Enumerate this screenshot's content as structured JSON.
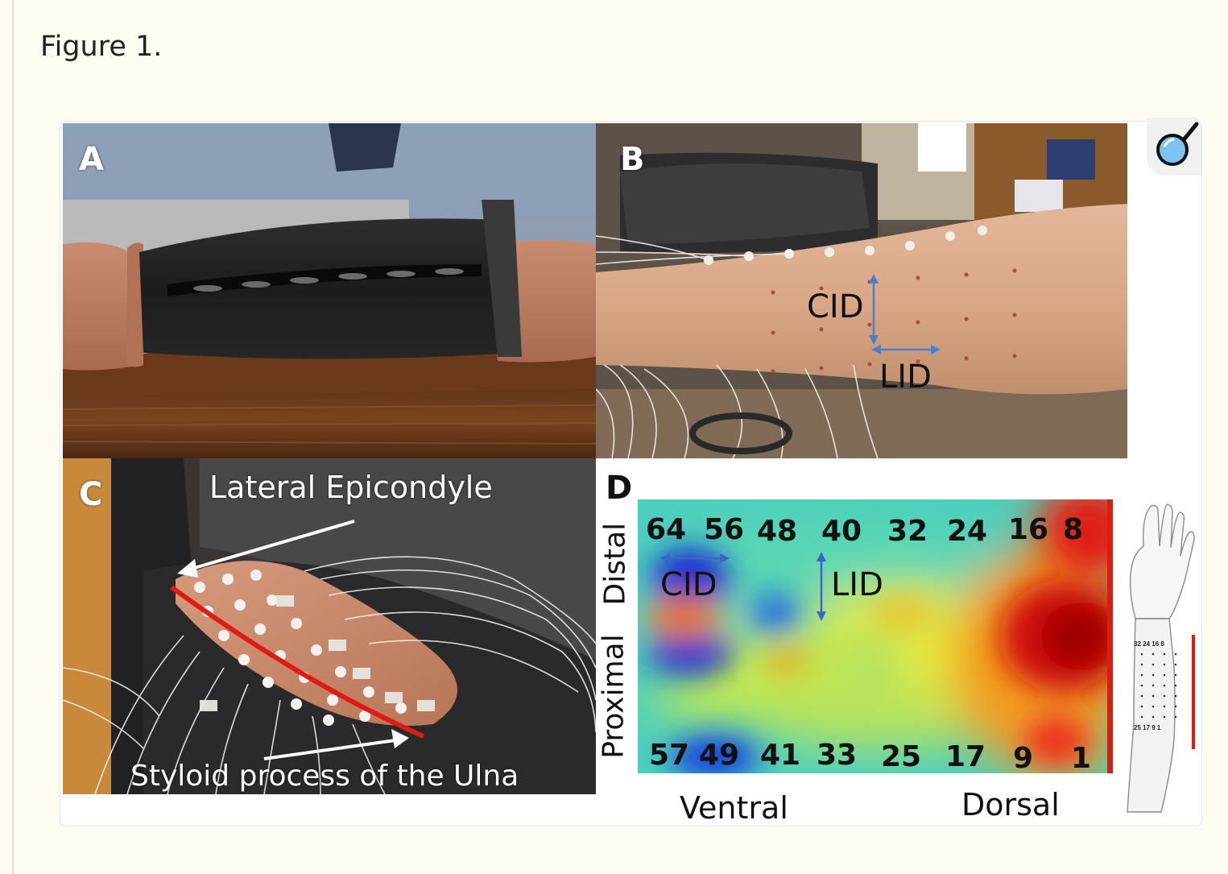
{
  "figure": {
    "title": "Figure 1.",
    "zoom_icon": "magnifier-icon"
  },
  "panel_a": {
    "label": "A"
  },
  "panel_b": {
    "label": "B",
    "cid_label": "CID",
    "lid_label": "LID"
  },
  "panel_c": {
    "label": "C",
    "top_annotation": "Lateral Epicondyle",
    "bottom_annotation": "Styloid process of the Ulna"
  },
  "panel_d": {
    "label": "D",
    "distal_label": "Distal",
    "proximal_label": "Proximal",
    "ventral_label": "Ventral",
    "dorsal_label": "Dorsal",
    "cid_label": "CID",
    "lid_label": "LID",
    "top_row": [
      "64",
      "56",
      "48",
      "40",
      "32",
      "24",
      "16",
      "8"
    ],
    "bottom_row": [
      "57",
      "49",
      "41",
      "33",
      "25",
      "17",
      "9",
      "1"
    ],
    "mini_top": "32 24 16 8",
    "mini_bottom": "25 17 9 1",
    "colors": {
      "low": "#0a1fd6",
      "mid": "#f0e93a",
      "high": "#b40000"
    }
  }
}
